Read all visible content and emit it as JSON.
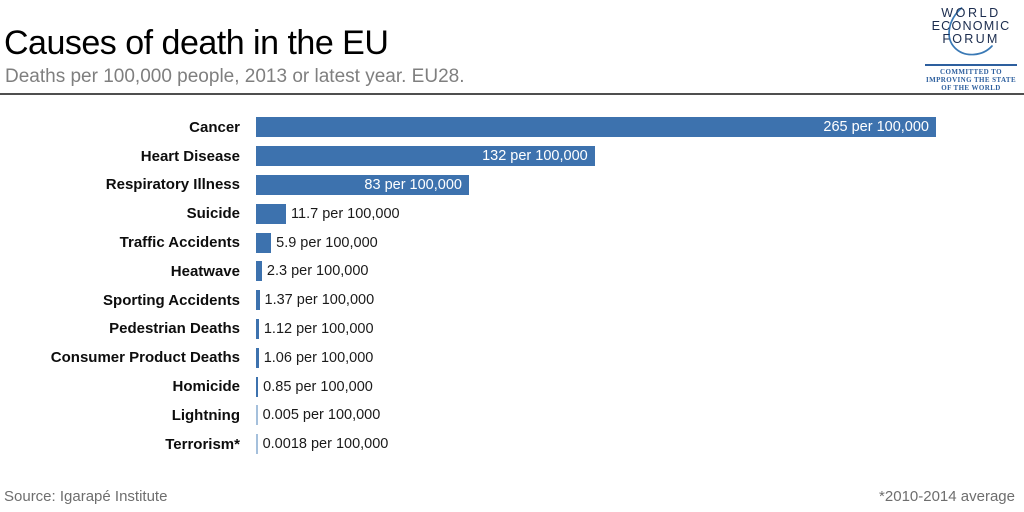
{
  "header": {
    "title": "Causes of death in the EU",
    "subtitle": "Deaths per 100,000 people, 2013 or latest year. EU28."
  },
  "logo": {
    "line1": "WORLD",
    "line2": "ECONOMIC",
    "line3": "FORUM",
    "tagline1": "COMMITTED TO",
    "tagline2": "IMPROVING THE STATE",
    "tagline3": "OF THE WORLD"
  },
  "footer": {
    "source": "Source: Igarapé Institute",
    "note": "*2010-2014 average"
  },
  "colors": {
    "bar": "#3d72ae",
    "bar_faint": "#a5c0dc",
    "logo_navy": "#1b2c4e",
    "logo_blue": "#2d5f9e"
  },
  "chart_data": {
    "type": "bar",
    "orientation": "horizontal",
    "title": "Causes of death in the EU",
    "subtitle": "Deaths per 100,000 people, 2013 or latest year. EU28.",
    "unit": "per 100,000",
    "xlim": [
      0,
      265
    ],
    "grid": false,
    "legend": false,
    "categories": [
      "Cancer",
      "Heart Disease",
      "Respiratory Illness",
      "Suicide",
      "Traffic Accidents",
      "Heatwave",
      "Sporting Accidents",
      "Pedestrian Deaths",
      "Consumer Product Deaths",
      "Homicide",
      "Lightning",
      "Terrorism*"
    ],
    "values": [
      265,
      132,
      83,
      11.7,
      5.9,
      2.3,
      1.37,
      1.12,
      1.06,
      0.85,
      0.005,
      0.0018
    ],
    "value_labels": [
      "265 per 100,000",
      "132 per 100,000",
      "83 per 100,000",
      "11.7 per 100,000",
      "5.9 per 100,000",
      "2.3 per 100,000",
      "1.37 per 100,000",
      "1.12 per 100,000",
      "1.06 per 100,000",
      "0.85 per 100,000",
      "0.005 per 100,000",
      "0.0018 per 100,000"
    ]
  }
}
